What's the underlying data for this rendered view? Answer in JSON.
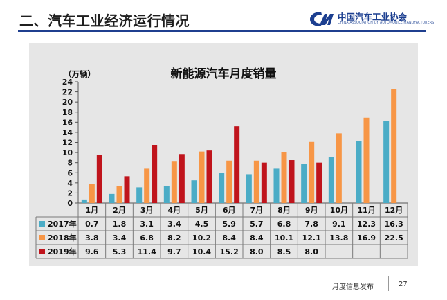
{
  "slide": {
    "title": "二、汽车工业经济运行情况",
    "logo_name": "中国汽车工业协会",
    "logo_en": "CHINA ASSOCIATION OF AUTOMOBILE MANUFACTURERS",
    "footer": "月度信息发布",
    "page_number": "27"
  },
  "colors": {
    "s2017": "#4bacc6",
    "s2018": "#f79646",
    "s2019": "#c0141c",
    "panel": "#e6e6e6",
    "brand": "#1c3f90"
  },
  "chart_data": {
    "type": "bar",
    "title": "新能源汽车月度销量",
    "ylabel": "（万辆）",
    "xlabel": "",
    "ylim": [
      0,
      24
    ],
    "yticks": [
      0,
      2,
      4,
      6,
      8,
      10,
      12,
      14,
      16,
      18,
      20,
      22,
      24
    ],
    "grid": false,
    "legend": "table-below",
    "categories": [
      "1月",
      "2月",
      "3月",
      "4月",
      "5月",
      "6月",
      "7月",
      "8月",
      "9月",
      "10月",
      "11月",
      "12月"
    ],
    "series": [
      {
        "name": "2017年",
        "color": "#4bacc6",
        "values": [
          0.7,
          1.8,
          3.1,
          3.4,
          4.5,
          5.9,
          5.7,
          6.8,
          7.8,
          9.1,
          12.3,
          16.3
        ]
      },
      {
        "name": "2018年",
        "color": "#f79646",
        "values": [
          3.8,
          3.4,
          6.8,
          8.2,
          10.2,
          8.4,
          8.4,
          10.1,
          12.1,
          13.8,
          16.9,
          22.5
        ]
      },
      {
        "name": "2019年",
        "color": "#c0141c",
        "values": [
          9.6,
          5.3,
          11.4,
          9.7,
          10.4,
          15.2,
          8.0,
          8.5,
          8.0,
          null,
          null,
          null
        ]
      }
    ]
  }
}
